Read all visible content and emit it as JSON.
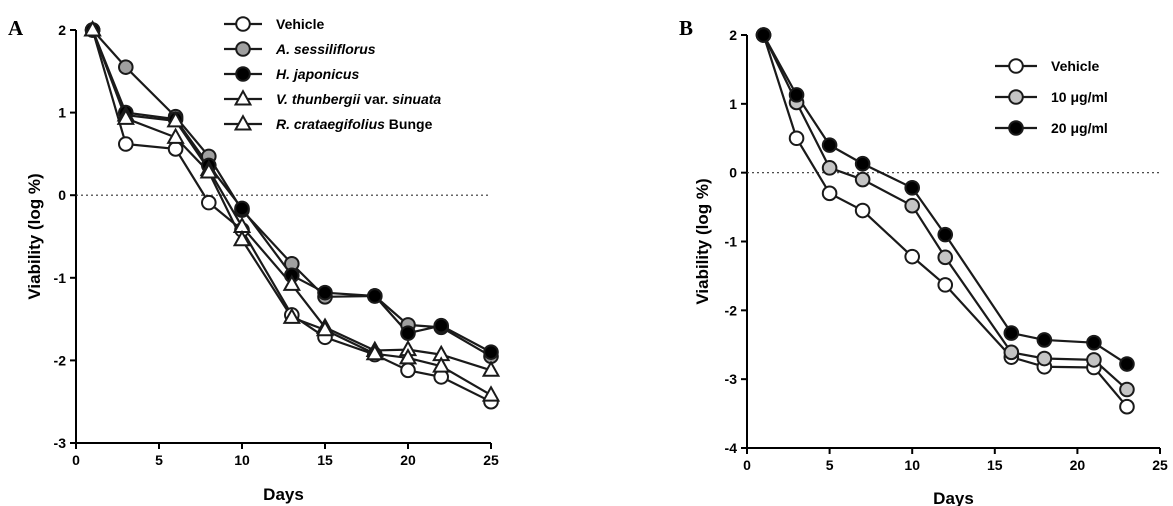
{
  "chart_data": [
    {
      "type": "line",
      "panel": "A",
      "xlabel": "Days",
      "ylabel": "Viability (log %)",
      "xlim": [
        0,
        25
      ],
      "ylim": [
        -3,
        2
      ],
      "xticks": [
        "0",
        "5",
        "10",
        "15",
        "20",
        "25"
      ],
      "yticks": [
        "2",
        "1",
        "0",
        "-1",
        "-2",
        "-3"
      ],
      "reference_line_y": 0,
      "grid": false,
      "legend_position": "top",
      "legend": [
        {
          "parts": [
            {
              "text": "Vehicle",
              "italic": false
            }
          ]
        },
        {
          "parts": [
            {
              "text": "A. sessiliflorus",
              "italic": true
            }
          ]
        },
        {
          "parts": [
            {
              "text": "H. japonicus",
              "italic": true
            }
          ]
        },
        {
          "parts": [
            {
              "text": "V. thunbergii",
              "italic": true
            },
            {
              "text": " var. ",
              "italic": false
            },
            {
              "text": "sinuata",
              "italic": true
            }
          ]
        },
        {
          "parts": [
            {
              "text": "R. crataegifolius",
              "italic": true
            },
            {
              "text": " Bunge",
              "italic": false
            }
          ]
        }
      ],
      "series": [
        {
          "marker": "circle",
          "fill": "#ffffff",
          "x": [
            1,
            3,
            6,
            8,
            10,
            13,
            15,
            18,
            20,
            22,
            25
          ],
          "y": [
            2.0,
            0.62,
            0.56,
            -0.09,
            -0.42,
            -1.45,
            -1.72,
            -1.93,
            -2.12,
            -2.2,
            -2.5
          ]
        },
        {
          "marker": "circle",
          "fill": "#a0a0a0",
          "x": [
            1,
            3,
            6,
            8,
            10,
            13,
            15,
            18,
            20,
            22,
            25
          ],
          "y": [
            2.0,
            1.55,
            0.95,
            0.47,
            -0.18,
            -0.83,
            -1.23,
            -1.22,
            -1.57,
            -1.6,
            -1.95
          ]
        },
        {
          "marker": "circle",
          "fill": "#000000",
          "x": [
            1,
            3,
            6,
            8,
            10,
            13,
            15,
            18,
            20,
            22,
            25
          ],
          "y": [
            2.0,
            1.0,
            0.92,
            0.36,
            -0.16,
            -0.97,
            -1.18,
            -1.22,
            -1.67,
            -1.58,
            -1.9
          ]
        },
        {
          "marker": "triangle",
          "fill": "#ffffff",
          "x": [
            1,
            3,
            6,
            8,
            10,
            13,
            15,
            18,
            20,
            22,
            25
          ],
          "y": [
            2.0,
            0.97,
            0.9,
            0.31,
            -0.38,
            -1.08,
            -1.6,
            -1.88,
            -1.87,
            -1.93,
            -2.12
          ]
        },
        {
          "marker": "triangle",
          "fill": "#ffffff",
          "x": [
            1,
            3,
            6,
            8,
            10,
            13,
            15,
            18,
            20,
            22,
            25
          ],
          "y": [
            2.0,
            0.93,
            0.7,
            0.28,
            -0.54,
            -1.48,
            -1.63,
            -1.92,
            -1.97,
            -2.07,
            -2.42
          ]
        }
      ]
    },
    {
      "type": "line",
      "panel": "B",
      "xlabel": "Days",
      "ylabel": "Viability (log %)",
      "xlim": [
        0,
        25
      ],
      "ylim": [
        -4,
        2
      ],
      "xticks": [
        "0",
        "5",
        "10",
        "15",
        "20",
        "25"
      ],
      "yticks": [
        "2",
        "1",
        "0",
        "-1",
        "-2",
        "-3",
        "-4"
      ],
      "reference_line_y": 0,
      "grid": false,
      "legend_position": "top-right",
      "legend": [
        {
          "parts": [
            {
              "text": "Vehicle",
              "italic": false
            }
          ]
        },
        {
          "parts": [
            {
              "text": "10 μg/ml",
              "italic": false
            }
          ]
        },
        {
          "parts": [
            {
              "text": "20 μg/ml",
              "italic": false
            }
          ]
        }
      ],
      "series": [
        {
          "marker": "circle",
          "fill": "#ffffff",
          "x": [
            1,
            3,
            5,
            7,
            10,
            12,
            16,
            18,
            21,
            23
          ],
          "y": [
            2.0,
            0.5,
            -0.3,
            -0.55,
            -1.22,
            -1.63,
            -2.68,
            -2.82,
            -2.83,
            -3.4
          ]
        },
        {
          "marker": "circle",
          "fill": "#c4c4c4",
          "x": [
            1,
            3,
            5,
            7,
            10,
            12,
            16,
            18,
            21,
            23
          ],
          "y": [
            2.0,
            1.02,
            0.07,
            -0.1,
            -0.48,
            -1.23,
            -2.61,
            -2.7,
            -2.72,
            -3.15
          ]
        },
        {
          "marker": "circle",
          "fill": "#000000",
          "x": [
            1,
            3,
            5,
            7,
            10,
            12,
            16,
            18,
            21,
            23
          ],
          "y": [
            2.0,
            1.13,
            0.4,
            0.13,
            -0.22,
            -0.9,
            -2.33,
            -2.43,
            -2.47,
            -2.78
          ]
        }
      ]
    }
  ]
}
